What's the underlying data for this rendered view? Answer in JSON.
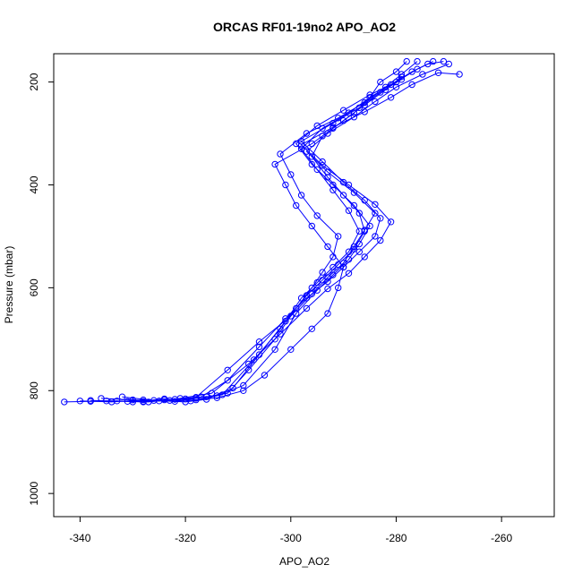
{
  "chart_data": {
    "type": "line",
    "title": "ORCAS RF01-19no2 APO_AO2",
    "xlabel": "APO_AO2",
    "ylabel": "Pressure (mbar)",
    "xlim": [
      -345,
      -250
    ],
    "ylim": [
      1045,
      145
    ],
    "y_axis_reversed": true,
    "x_ticks": [
      -340,
      -320,
      -300,
      -280,
      -260
    ],
    "y_ticks": [
      200,
      400,
      600,
      800,
      1000
    ],
    "marker": "open-circle",
    "series_color": "#0000ff",
    "grid": false,
    "legend": "none",
    "series": [
      {
        "x": [
          -343,
          -338,
          -333,
          -328,
          -323,
          -318,
          -314,
          -309,
          -305,
          -300,
          -296,
          -293,
          -291,
          -290,
          -293,
          -296,
          -299,
          -301,
          -303,
          -296,
          -292,
          -288,
          -285,
          -283,
          -280,
          -278
        ],
        "y": [
          822,
          821,
          820,
          822,
          819,
          818,
          814,
          800,
          770,
          720,
          680,
          650,
          600,
          560,
          520,
          480,
          440,
          400,
          360,
          320,
          290,
          260,
          230,
          200,
          180,
          160
        ]
      },
      {
        "x": [
          -336,
          -330,
          -325,
          -320,
          -316,
          -312,
          -308,
          -303,
          -299,
          -296,
          -294,
          -292,
          -291,
          -295,
          -298,
          -300,
          -302,
          -297,
          -291,
          -286,
          -282,
          -279,
          -276
        ],
        "y": [
          815,
          818,
          820,
          816,
          812,
          805,
          760,
          700,
          640,
          600,
          570,
          540,
          500,
          460,
          420,
          380,
          340,
          300,
          270,
          240,
          210,
          185,
          160
        ]
      },
      {
        "x": [
          -340,
          -334,
          -328,
          -322,
          -318,
          -313,
          -307,
          -302,
          -298,
          -295,
          -292,
          -289,
          -287,
          -289,
          -292,
          -295,
          -298,
          -294,
          -289,
          -285,
          -281,
          -277,
          -274,
          -271
        ],
        "y": [
          820,
          822,
          818,
          821,
          815,
          808,
          740,
          680,
          620,
          590,
          560,
          530,
          490,
          450,
          410,
          370,
          330,
          290,
          260,
          230,
          205,
          180,
          165,
          160
        ]
      },
      {
        "x": [
          -332,
          -326,
          -320,
          -316,
          -311,
          -306,
          -301,
          -297,
          -294,
          -291,
          -288,
          -286,
          -287,
          -290,
          -293,
          -296,
          -294,
          -290,
          -286,
          -282,
          -279
        ],
        "y": [
          812,
          819,
          822,
          817,
          795,
          730,
          665,
          615,
          585,
          555,
          525,
          490,
          455,
          420,
          385,
          345,
          305,
          275,
          245,
          215,
          190
        ]
      },
      {
        "x": [
          -330,
          -324,
          -319,
          -314,
          -309,
          -303,
          -299,
          -295,
          -292,
          -289,
          -287,
          -285,
          -288,
          -292,
          -296,
          -299,
          -295,
          -290,
          -285,
          -280,
          -276,
          -273
        ],
        "y": [
          822,
          816,
          820,
          810,
          790,
          720,
          650,
          605,
          575,
          545,
          515,
          480,
          440,
          400,
          360,
          320,
          285,
          255,
          225,
          200,
          175,
          160
        ]
      },
      {
        "x": [
          -338,
          -331,
          -324,
          -318,
          -312,
          -306,
          -300,
          -296,
          -293,
          -290,
          -288,
          -286,
          -284,
          -288,
          -293,
          -297,
          -293,
          -288,
          -284,
          -280,
          -275,
          -270
        ],
        "y": [
          819,
          821,
          818,
          813,
          760,
          705,
          655,
          612,
          580,
          552,
          520,
          488,
          455,
          415,
          375,
          335,
          300,
          268,
          238,
          210,
          185,
          165
        ]
      },
      {
        "x": [
          -328,
          -322,
          -317,
          -312,
          -306,
          -301,
          -297,
          -293,
          -290,
          -287,
          -284,
          -283,
          -286,
          -290,
          -294,
          -298,
          -292,
          -287,
          -283,
          -279
        ],
        "y": [
          821,
          817,
          812,
          780,
          715,
          660,
          620,
          588,
          560,
          530,
          500,
          465,
          430,
          395,
          355,
          315,
          280,
          250,
          220,
          195
        ]
      },
      {
        "x": [
          -335,
          -327,
          -321,
          -315,
          -308,
          -302,
          -297,
          -293,
          -289,
          -286,
          -283,
          -281,
          -284,
          -289,
          -294,
          -298,
          -292,
          -286,
          -281,
          -277,
          -272,
          -268
        ],
        "y": [
          820,
          822,
          815,
          805,
          748,
          690,
          640,
          602,
          572,
          540,
          508,
          472,
          438,
          400,
          362,
          322,
          288,
          258,
          230,
          205,
          182,
          185
        ]
      }
    ]
  }
}
